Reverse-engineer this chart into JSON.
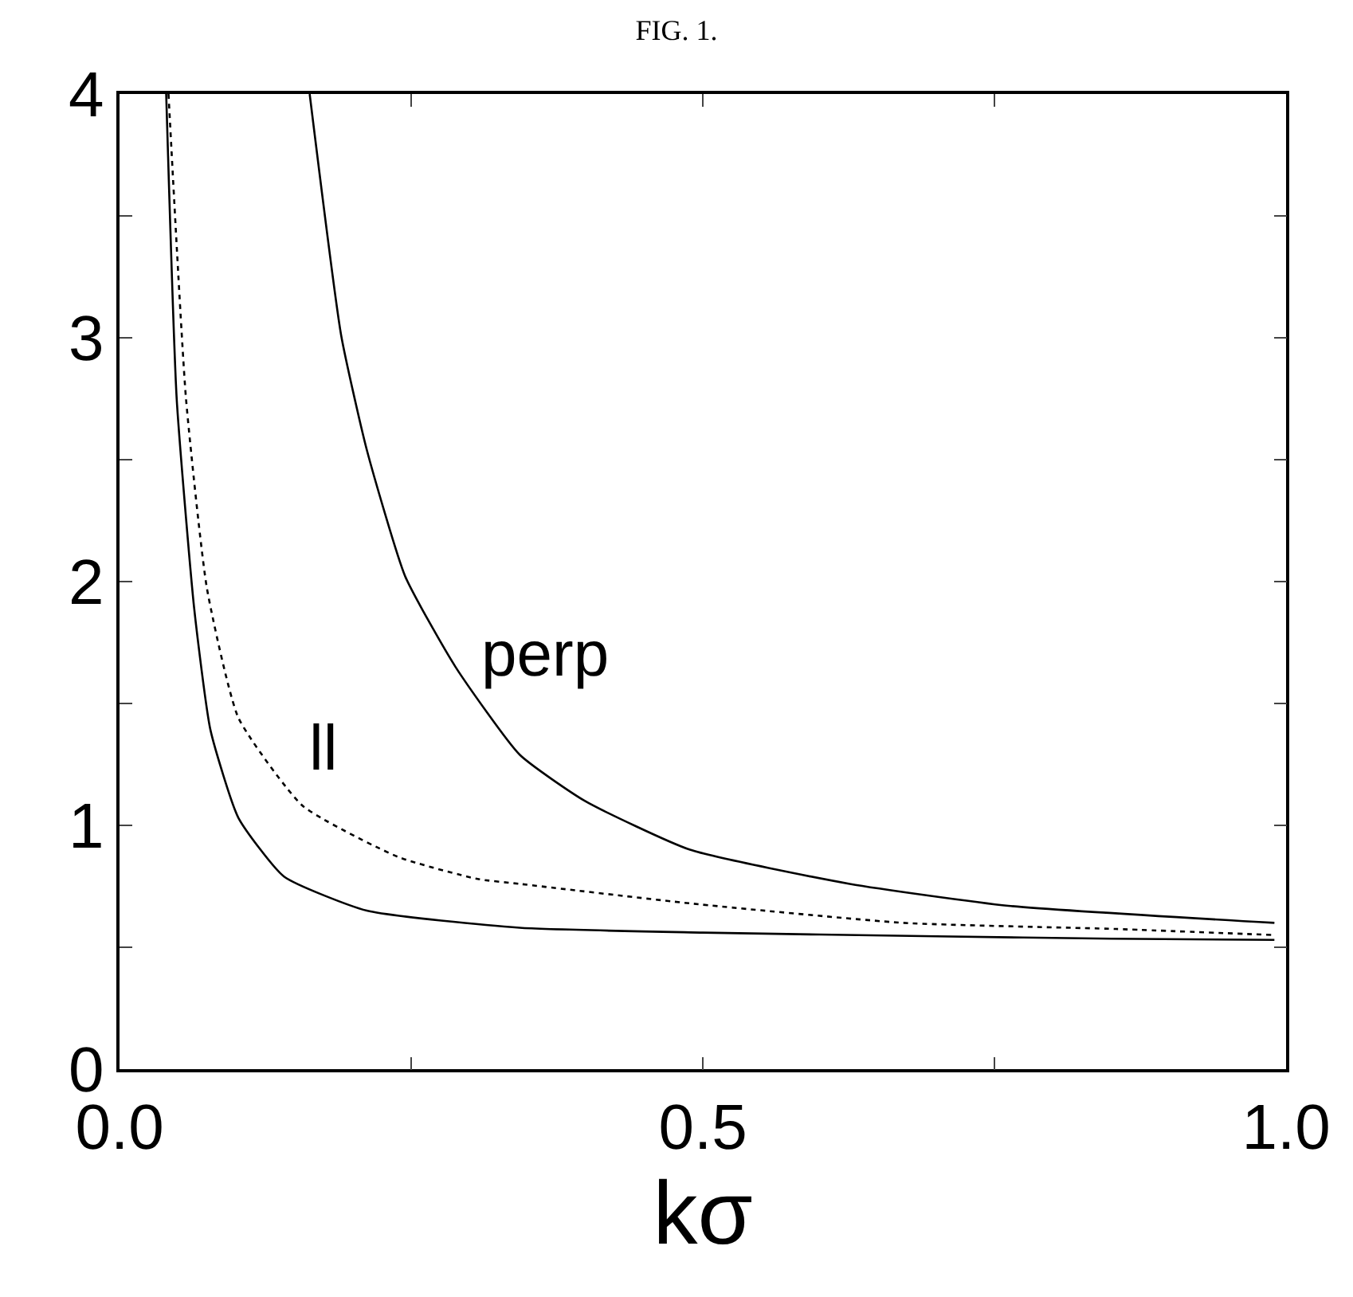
{
  "chart_data": {
    "type": "line",
    "title": "FIG. 1.",
    "xlabel": "kσ",
    "xlim": [
      0,
      1
    ],
    "ylim": [
      0,
      4
    ],
    "xticks": [
      {
        "value": 0,
        "label": "0.0"
      },
      {
        "value": 0.25,
        "label": null
      },
      {
        "value": 0.5,
        "label": "0.5"
      },
      {
        "value": 0.75,
        "label": null
      },
      {
        "value": 1,
        "label": "1.0"
      }
    ],
    "yticks": [
      0,
      {
        "value": 0.5,
        "label": null
      },
      1,
      {
        "value": 1.5,
        "label": null
      },
      2,
      {
        "value": 2.5,
        "label": null
      },
      3,
      {
        "value": 3.5,
        "label": null
      },
      4
    ],
    "grid": false,
    "legend": false,
    "marker": "none",
    "series": [
      {
        "color": "#000000",
        "line_style": "solid",
        "x": [
          0.04,
          0.049,
          0.064,
          0.078,
          0.102,
          0.141,
          0.212,
          0.343,
          0.5,
          0.7,
          0.85,
          0.99
        ],
        "values": [
          4,
          2.75,
          1.89,
          1.39,
          1.03,
          0.79,
          0.65,
          0.58,
          0.56,
          0.545,
          0.535,
          0.53
        ]
      },
      {
        "name": "ll",
        "color": "#000000",
        "line_style": "dotted",
        "x": [
          0.042,
          0.057,
          0.075,
          0.102,
          0.157,
          0.239,
          0.307,
          0.343,
          0.489,
          0.672,
          0.854,
          0.99
        ],
        "values": [
          4,
          2.75,
          1.97,
          1.44,
          1.08,
          0.87,
          0.78,
          0.76,
          0.68,
          0.6,
          0.575,
          0.55
        ]
      },
      {
        "name": "perp",
        "color": "#000000",
        "line_style": "solid",
        "x": [
          0.163,
          0.19,
          0.212,
          0.245,
          0.288,
          0.343,
          0.399,
          0.489,
          0.626,
          0.762,
          0.99
        ],
        "values": [
          4,
          3.01,
          2.54,
          2.02,
          1.65,
          1.29,
          1.1,
          0.9,
          0.76,
          0.67,
          0.6
        ]
      }
    ]
  }
}
